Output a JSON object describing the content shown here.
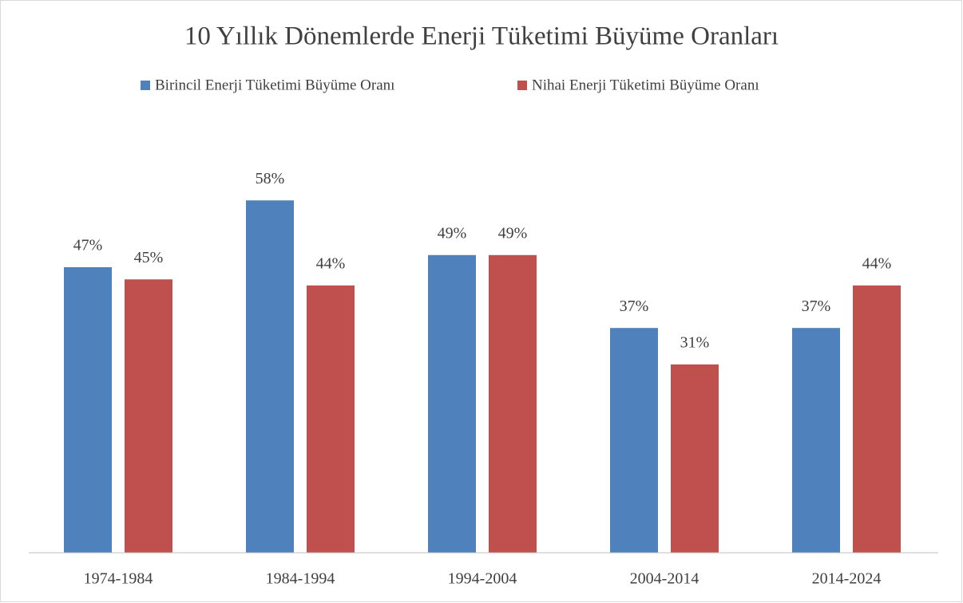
{
  "chart_data": {
    "type": "bar",
    "title": "10 Yıllık Dönemlerde Enerji Tüketimi Büyüme Oranları",
    "categories": [
      "1974-1984",
      "1984-1994",
      "1994-2004",
      "2004-2014",
      "2014-2024"
    ],
    "series": [
      {
        "name": "Birincil Enerji Tüketimi Büyüme Oranı",
        "color": "#4f81bd",
        "values": [
          47,
          58,
          49,
          37,
          37
        ],
        "value_labels": [
          "47%",
          "58%",
          "49%",
          "37%",
          "37%"
        ]
      },
      {
        "name": "Nihai Enerji Tüketimi Büyüme Oranı",
        "color": "#c0504d",
        "values": [
          45,
          44,
          49,
          31,
          44
        ],
        "value_labels": [
          "45%",
          "44%",
          "49%",
          "31%",
          "44%"
        ]
      }
    ],
    "ylim": [
      0,
      60
    ],
    "legend": "top"
  }
}
